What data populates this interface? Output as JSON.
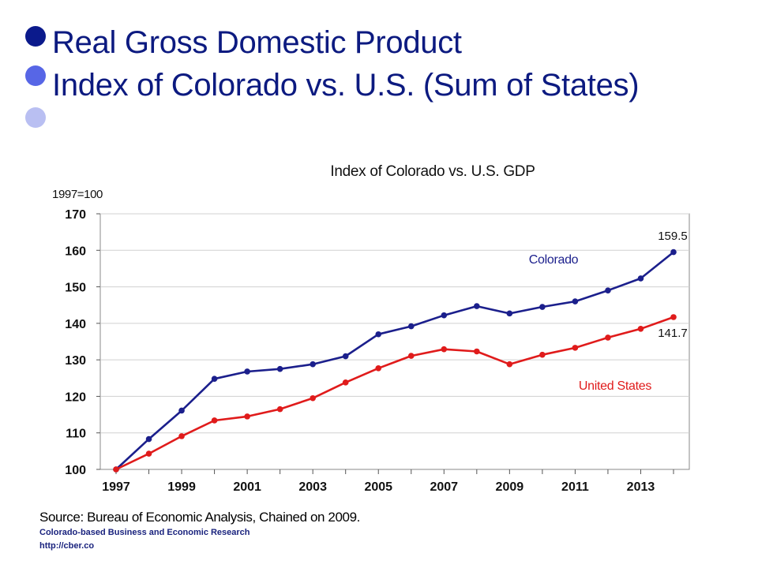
{
  "slide": {
    "bullets": [
      {
        "color": "#0b1a8c"
      },
      {
        "color": "#5766e6"
      },
      {
        "color": "#b9bff2"
      }
    ],
    "title_line1": "Real Gross Domestic Product",
    "title_line2": "Index of Colorado vs. U.S. (Sum of States)"
  },
  "chart_data": {
    "type": "line",
    "title": "Index of Colorado vs. U.S. GDP",
    "ylabel": "1997=100",
    "xlabel": "",
    "ylim": [
      100,
      170
    ],
    "yticks": [
      100,
      110,
      120,
      130,
      140,
      150,
      160,
      170
    ],
    "xlim": [
      1997,
      2014
    ],
    "xtick_labels": [
      "1997",
      "1999",
      "2001",
      "2003",
      "2005",
      "2007",
      "2009",
      "2011",
      "2013"
    ],
    "grid": true,
    "x": [
      1997,
      1998,
      1999,
      2000,
      2001,
      2002,
      2003,
      2004,
      2005,
      2006,
      2007,
      2008,
      2009,
      2010,
      2011,
      2012,
      2013,
      2014
    ],
    "series": [
      {
        "name": "Colorado",
        "color": "#1b1f8c",
        "values": [
          100,
          108.3,
          116.1,
          124.8,
          126.8,
          127.5,
          128.8,
          131.0,
          137.0,
          139.2,
          142.2,
          144.7,
          142.7,
          144.5,
          146.0,
          149.0,
          152.3,
          159.5
        ],
        "end_label": "159.5"
      },
      {
        "name": "United States",
        "color": "#e01b1b",
        "values": [
          100,
          104.3,
          109.1,
          113.4,
          114.5,
          116.5,
          119.5,
          123.8,
          127.7,
          131.1,
          132.9,
          132.3,
          128.8,
          131.4,
          133.3,
          136.1,
          138.5,
          141.7
        ],
        "end_label": "141.7"
      }
    ]
  },
  "footer": {
    "source": "Source: Bureau of Economic Analysis, Chained on 2009.",
    "org": "Colorado-based Business and Economic Research",
    "url": "http://cber.co"
  }
}
